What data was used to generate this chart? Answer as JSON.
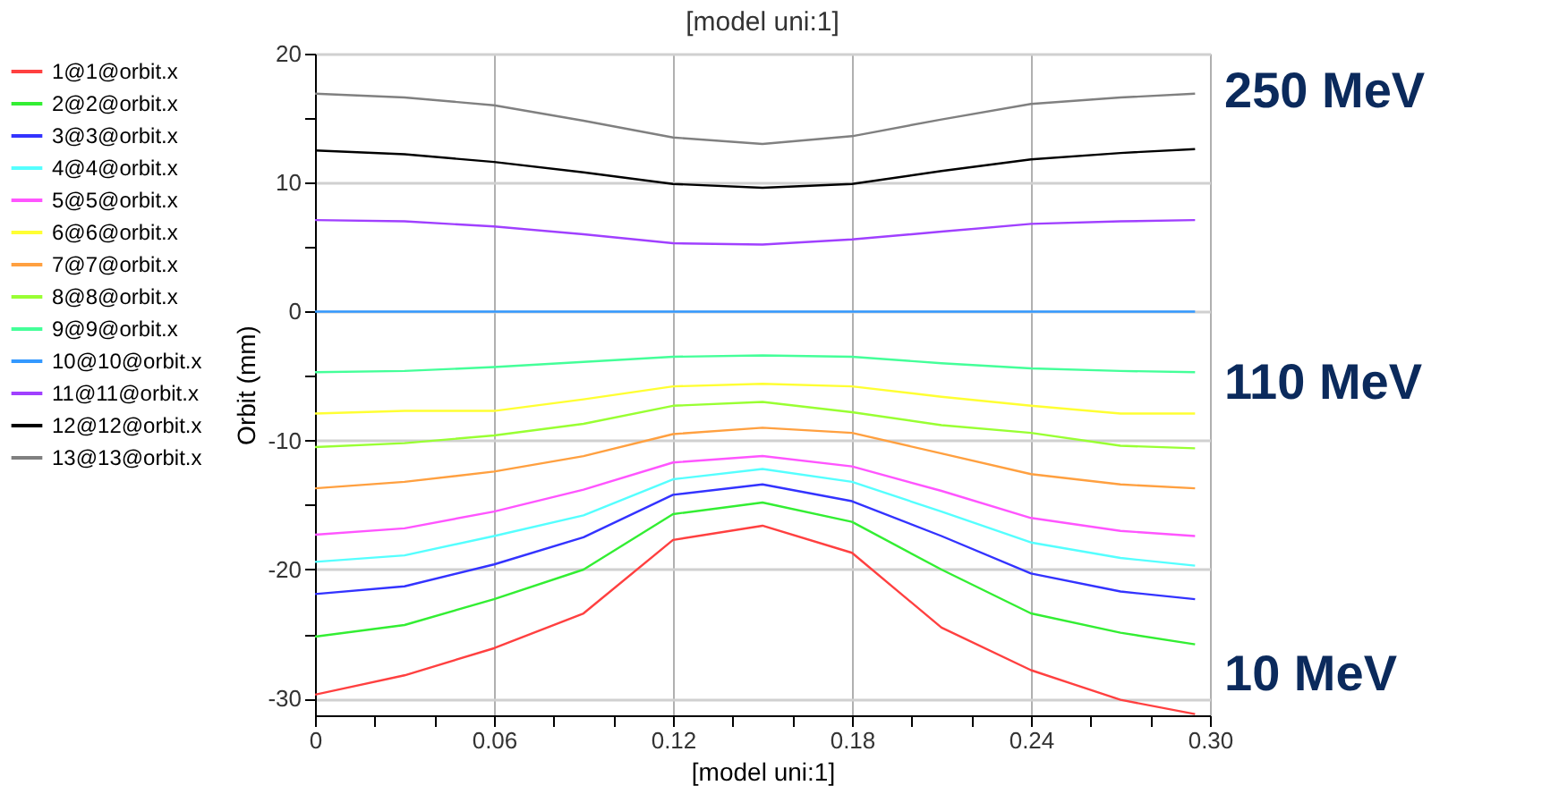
{
  "chart_data": {
    "type": "line",
    "title": "[model uni:1]",
    "xlabel": "[model uni:1]",
    "ylabel": "Orbit (mm)",
    "x": [
      0,
      0.03,
      0.06,
      0.09,
      0.12,
      0.15,
      0.18,
      0.21,
      0.24,
      0.27,
      0.295
    ],
    "series": [
      {
        "name": "1@1@orbit.x",
        "color": "#ff4040",
        "values": [
          -29.7,
          -28.2,
          -26.1,
          -23.4,
          -17.7,
          -16.6,
          -18.7,
          -24.5,
          -27.8,
          -30.1,
          -31.2
        ]
      },
      {
        "name": "2@2@orbit.x",
        "color": "#33ee33",
        "values": [
          -25.2,
          -24.3,
          -22.3,
          -20.0,
          -15.7,
          -14.8,
          -16.3,
          -20.0,
          -23.4,
          -24.9,
          -25.8
        ]
      },
      {
        "name": "3@3@orbit.x",
        "color": "#3333ff",
        "values": [
          -21.9,
          -21.3,
          -19.6,
          -17.5,
          -14.2,
          -13.4,
          -14.7,
          -17.4,
          -20.3,
          -21.7,
          -22.3
        ]
      },
      {
        "name": "4@4@orbit.x",
        "color": "#55ffff",
        "values": [
          -19.4,
          -18.9,
          -17.4,
          -15.8,
          -13.0,
          -12.2,
          -13.2,
          -15.5,
          -17.9,
          -19.1,
          -19.7
        ]
      },
      {
        "name": "5@5@orbit.x",
        "color": "#ff55ff",
        "values": [
          -17.3,
          -16.8,
          -15.5,
          -13.8,
          -11.7,
          -11.2,
          -12.0,
          -13.9,
          -16.0,
          -17.0,
          -17.4
        ]
      },
      {
        "name": "6@6@orbit.x",
        "color": "#ffff33",
        "values": [
          -7.9,
          -7.7,
          -7.7,
          -6.8,
          -5.8,
          -5.6,
          -5.8,
          -6.6,
          -7.3,
          -7.9,
          -7.9
        ]
      },
      {
        "name": "7@7@orbit.x",
        "color": "#ffa040",
        "values": [
          -13.7,
          -13.2,
          -12.4,
          -11.2,
          -9.5,
          -9.0,
          -9.4,
          -11.0,
          -12.6,
          -13.4,
          -13.7
        ]
      },
      {
        "name": "8@8@orbit.x",
        "color": "#99ff33",
        "values": [
          -10.5,
          -10.2,
          -9.6,
          -8.7,
          -7.3,
          -7.0,
          -7.8,
          -8.8,
          -9.4,
          -10.4,
          -10.6
        ]
      },
      {
        "name": "9@9@orbit.x",
        "color": "#44ff99",
        "values": [
          -4.7,
          -4.6,
          -4.3,
          -3.9,
          -3.5,
          -3.4,
          -3.5,
          -4.0,
          -4.4,
          -4.6,
          -4.7
        ]
      },
      {
        "name": "10@10@orbit.x",
        "color": "#3399ff",
        "values": [
          0,
          0,
          0,
          0,
          0,
          0,
          0,
          0,
          0,
          0,
          0
        ]
      },
      {
        "name": "11@11@orbit.x",
        "color": "#a040ff",
        "values": [
          7.1,
          7.0,
          6.6,
          6.0,
          5.3,
          5.2,
          5.6,
          6.2,
          6.8,
          7.0,
          7.1
        ]
      },
      {
        "name": "12@12@orbit.x",
        "color": "#000000",
        "values": [
          12.5,
          12.2,
          11.6,
          10.8,
          9.9,
          9.6,
          9.9,
          10.9,
          11.8,
          12.3,
          12.6
        ]
      },
      {
        "name": "13@13@orbit.x",
        "color": "#808080",
        "values": [
          16.9,
          16.6,
          16.0,
          14.8,
          13.5,
          13.0,
          13.6,
          14.9,
          16.1,
          16.6,
          16.9
        ]
      }
    ],
    "xlim": [
      0,
      0.3
    ],
    "xticks": [
      0,
      {
        "value": 0.02,
        "label": null
      },
      {
        "value": 0.04,
        "label": null
      },
      0.06,
      {
        "value": 0.08,
        "label": null
      },
      {
        "value": 0.1,
        "label": null
      },
      0.12,
      {
        "value": 0.14,
        "label": null
      },
      {
        "value": 0.16,
        "label": null
      },
      0.18,
      {
        "value": 0.2,
        "label": null
      },
      {
        "value": 0.22,
        "label": null
      },
      0.24,
      {
        "value": 0.26,
        "label": null
      },
      {
        "value": 0.28,
        "label": null
      },
      {
        "value": 0.3,
        "label": "0.30"
      }
    ],
    "ylim": [
      -31.3,
      20
    ],
    "yticks": [
      -30,
      {
        "value": -25,
        "label": null
      },
      -20,
      {
        "value": -15,
        "label": null
      },
      -10,
      {
        "value": -5,
        "label": null
      },
      0,
      {
        "value": 5,
        "label": null
      },
      10,
      {
        "value": 15,
        "label": null
      },
      20
    ],
    "grid": true,
    "legend": "left",
    "marker": "none",
    "line_style": "solid",
    "annotations": [
      "250 MeV",
      "110 MeV",
      "10 MeV"
    ]
  }
}
